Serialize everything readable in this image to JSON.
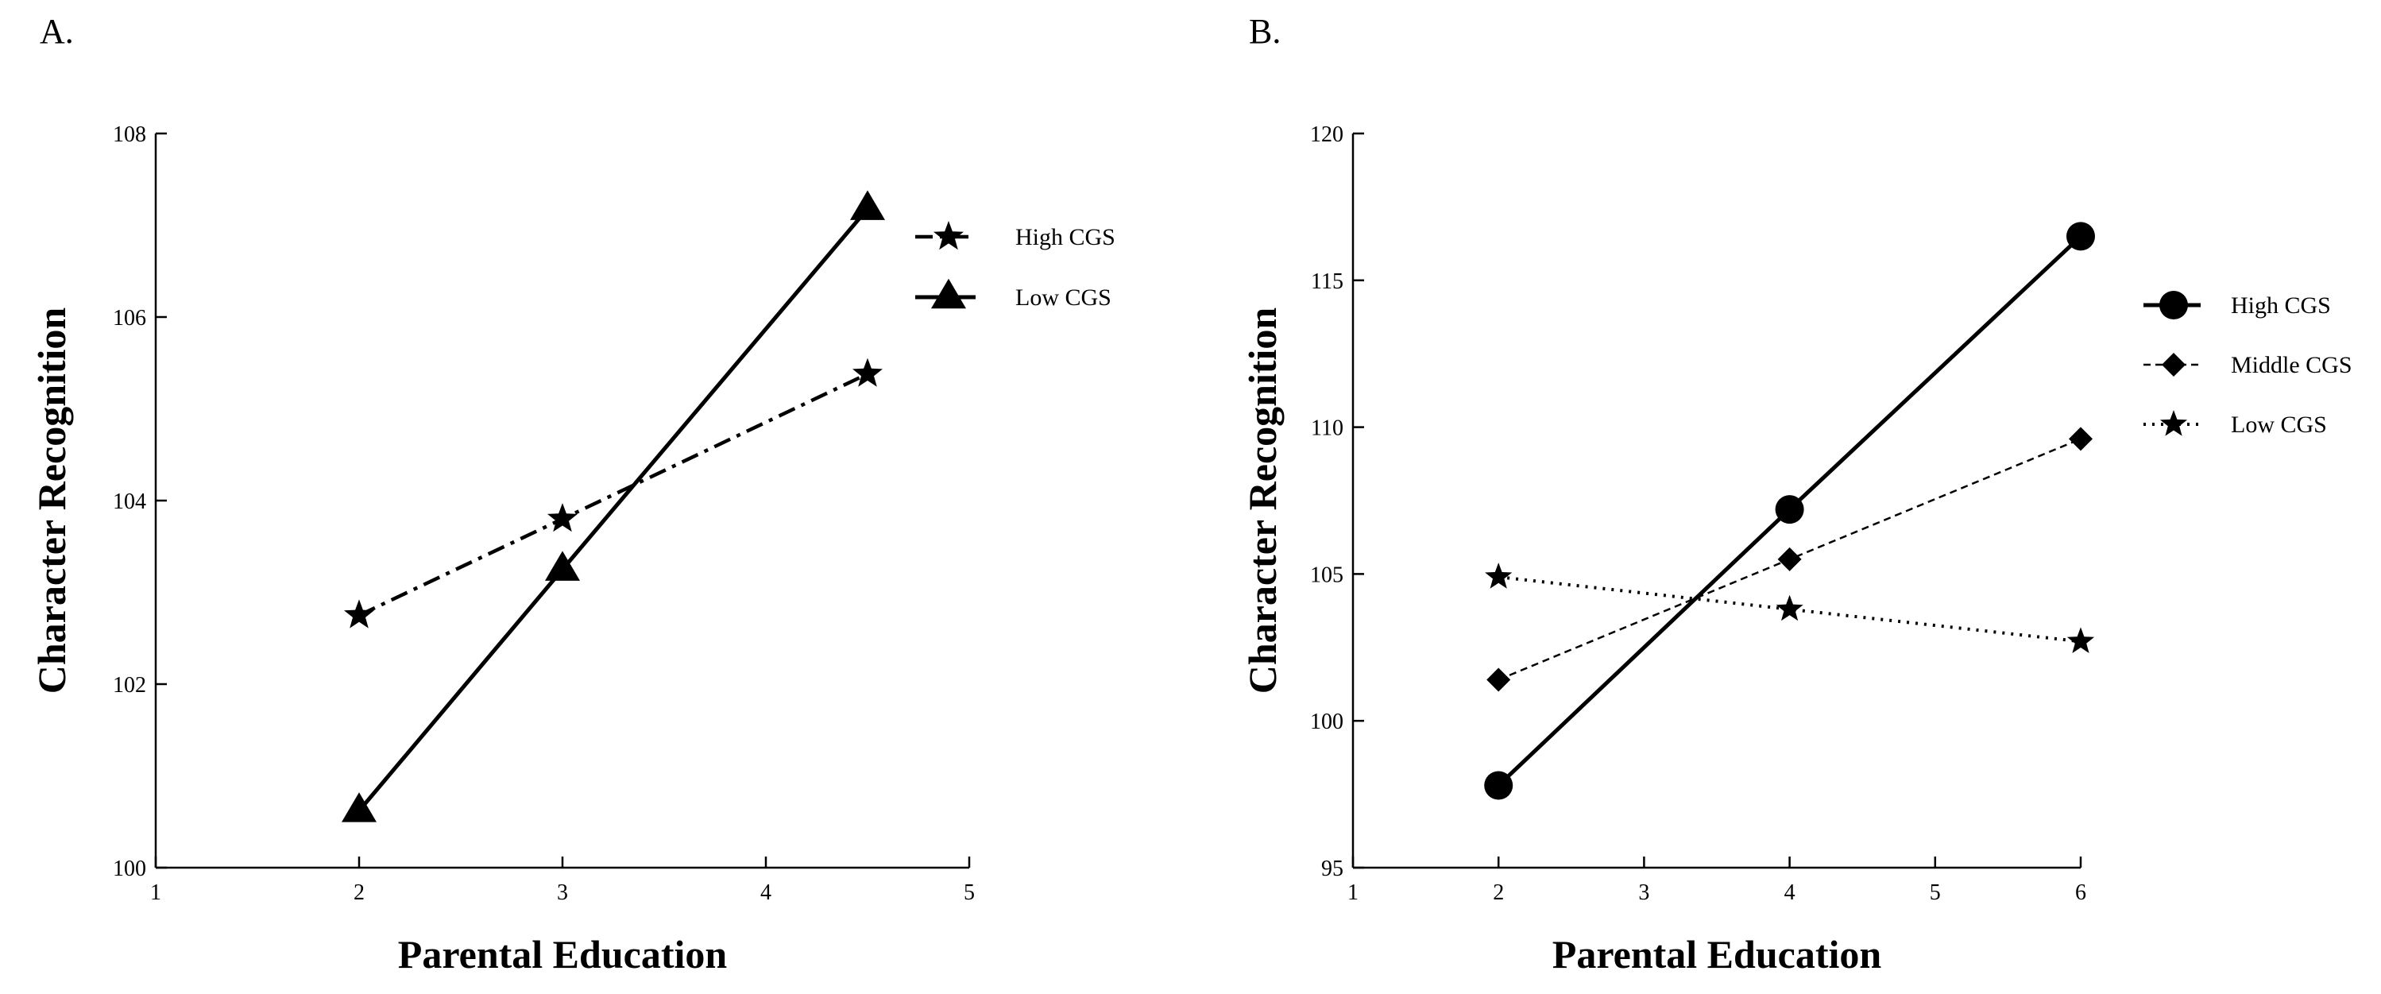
{
  "chart_data": [
    {
      "panel_label": "A.",
      "type": "line",
      "xlabel": "Parental Education",
      "ylabel": "Character Recognition",
      "xlim": [
        1,
        5
      ],
      "ylim": [
        100,
        108
      ],
      "xticks": [
        1,
        2,
        3,
        4,
        5
      ],
      "yticks": [
        100,
        102,
        104,
        106,
        108
      ],
      "legend_position": "top-right",
      "series": [
        {
          "name": "High CGS",
          "line_style": "dash-dot",
          "marker": "star",
          "x": [
            2,
            3,
            4.5
          ],
          "y": [
            102.75,
            103.8,
            105.38
          ]
        },
        {
          "name": "Low CGS",
          "line_style": "solid",
          "marker": "triangle",
          "x": [
            2,
            3,
            4.5
          ],
          "y": [
            100.62,
            103.25,
            107.18
          ]
        }
      ]
    },
    {
      "panel_label": "B.",
      "type": "line",
      "xlabel": "Parental Education",
      "ylabel": "Character Recognition",
      "xlim": [
        1,
        6
      ],
      "ylim": [
        95,
        120
      ],
      "xticks": [
        1,
        2,
        3,
        4,
        5,
        6
      ],
      "yticks": [
        95,
        100,
        105,
        110,
        115,
        120
      ],
      "legend_position": "right",
      "series": [
        {
          "name": "High CGS",
          "line_style": "solid",
          "marker": "circle",
          "x": [
            2,
            4,
            6
          ],
          "y": [
            97.8,
            107.2,
            116.5
          ]
        },
        {
          "name": "Middle CGS",
          "line_style": "dashed",
          "marker": "diamond",
          "x": [
            2,
            4,
            6
          ],
          "y": [
            101.4,
            105.5,
            109.6
          ]
        },
        {
          "name": "Low CGS",
          "line_style": "dotted",
          "marker": "star",
          "x": [
            2,
            4,
            6
          ],
          "y": [
            104.9,
            103.8,
            102.7
          ]
        }
      ]
    }
  ]
}
